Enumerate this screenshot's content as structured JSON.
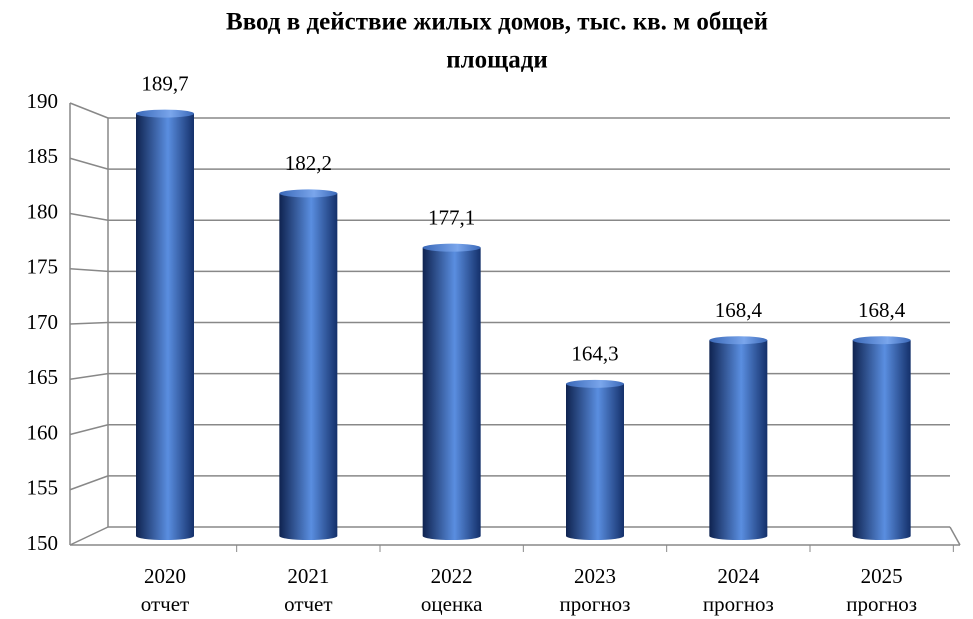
{
  "chart_data": {
    "type": "bar",
    "title": [
      "Ввод в действие жилых домов, тыс. кв. м общей",
      "площади"
    ],
    "categories": [
      [
        "2020",
        "отчет"
      ],
      [
        "2021",
        "отчет"
      ],
      [
        "2022",
        "оценка"
      ],
      [
        "2023",
        "прогноз"
      ],
      [
        "2024",
        "прогноз"
      ],
      [
        "2025",
        "прогноз"
      ]
    ],
    "values": [
      189.7,
      182.2,
      177.1,
      164.3,
      168.4,
      168.4
    ],
    "value_labels": [
      "189,7",
      "182,2",
      "177,1",
      "164,3",
      "168,4",
      "168,4"
    ],
    "color": "#2f5db0",
    "ylim": [
      150,
      190
    ],
    "yticks": [
      150,
      155,
      160,
      165,
      170,
      175,
      180,
      185,
      190
    ],
    "grid": true
  }
}
